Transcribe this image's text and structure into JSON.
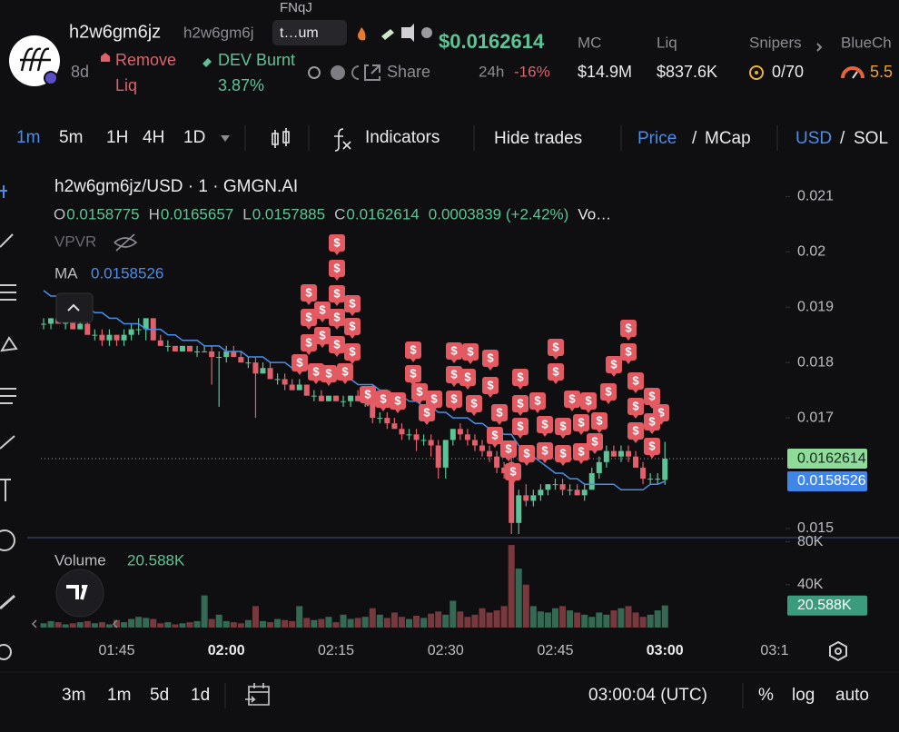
{
  "header": {
    "token_name": "h2w6gm6jz",
    "token_short": "h2w6gm6j",
    "tag_top": "FNqJ",
    "tag_box": "t…um",
    "age": "8d",
    "remove_liq_lines": [
      "Remove",
      "Liq"
    ],
    "dev_label": "DEV Burnt",
    "dev_value": "3.87%",
    "price": "$0.0162614",
    "change_label": "24h",
    "change": "-16%",
    "share": "Share",
    "stats": [
      {
        "label": "MC",
        "value": "$14.9M"
      },
      {
        "label": "Liq",
        "value": "$837.6K"
      },
      {
        "label": "Snipers",
        "value": "0/70"
      },
      {
        "label": "BlueCh",
        "value": "5.5"
      }
    ]
  },
  "toolbar": {
    "intervals": [
      "1m",
      "5m",
      "1H",
      "4H",
      "1D"
    ],
    "indicators": "Indicators",
    "hide_trades": "Hide trades",
    "price": "Price",
    "mcap": "MCap",
    "usd": "USD",
    "sol": "SOL",
    "sep": "/"
  },
  "chart_data": {
    "type": "candlestick",
    "title": "h2w6gm6jz/USD · 1 · GMGN.AI",
    "ohlc_letters": [
      "O",
      "H",
      "L",
      "C"
    ],
    "change": "0.0003839 (+2.42%)",
    "volume_short": "Vo…",
    "vpvr": "VPVR",
    "ma_name": "MA",
    "trade_marker": "$",
    "colors": {
      "up": "#5cc497",
      "down": "#e0616c",
      "ma": "#4a8ee8"
    },
    "categories": [
      null,
      null,
      null,
      null,
      null,
      null,
      null,
      null,
      null,
      null,
      "01:45",
      null,
      null,
      null,
      null,
      null,
      null,
      null,
      null,
      null,
      null,
      null,
      null,
      null,
      null,
      "02:00",
      null,
      null,
      null,
      null,
      null,
      null,
      null,
      null,
      null,
      null,
      null,
      null,
      null,
      null,
      "02:15",
      null,
      null,
      null,
      null,
      null,
      null,
      null,
      null,
      null,
      null,
      null,
      null,
      null,
      null,
      "02:30",
      null,
      null,
      null,
      null,
      null,
      null,
      null,
      null,
      null,
      null,
      null,
      null,
      null,
      null,
      "02:45",
      null,
      null,
      null,
      null,
      null,
      null,
      null,
      null,
      null,
      null,
      null,
      null,
      null,
      null,
      "03:00"
    ],
    "next_tick_label": "03:1",
    "candles": [
      [
        0.0187,
        0.0188,
        0.0186,
        0.0187
      ],
      [
        0.0187,
        0.0188,
        0.0186,
        0.0188
      ],
      [
        0.0188,
        0.0188,
        0.0187,
        0.0187
      ],
      [
        0.0187,
        0.0188,
        0.0186,
        0.0188
      ],
      [
        0.0188,
        0.0188,
        0.0186,
        0.0186
      ],
      [
        0.0186,
        0.0188,
        0.0186,
        0.0187
      ],
      [
        0.0187,
        0.0188,
        0.0185,
        0.0185
      ],
      [
        0.0185,
        0.0186,
        0.0184,
        0.0185
      ],
      [
        0.0185,
        0.0186,
        0.0183,
        0.0184
      ],
      [
        0.0184,
        0.0186,
        0.0183,
        0.0185
      ],
      [
        0.0185,
        0.0185,
        0.0183,
        0.0184
      ],
      [
        0.0184,
        0.0186,
        0.0183,
        0.0185
      ],
      [
        0.0185,
        0.0187,
        0.0184,
        0.0186
      ],
      [
        0.0186,
        0.0188,
        0.0185,
        0.0186
      ],
      [
        0.0186,
        0.0188,
        0.0184,
        0.0188
      ],
      [
        0.0188,
        0.0188,
        0.0184,
        0.0184
      ],
      [
        0.0184,
        0.0185,
        0.0183,
        0.0183
      ],
      [
        0.0183,
        0.0184,
        0.0182,
        0.0183
      ],
      [
        0.0183,
        0.0183,
        0.0182,
        0.0182
      ],
      [
        0.0182,
        0.0183,
        0.0182,
        0.0183
      ],
      [
        0.0183,
        0.0183,
        0.0182,
        0.0182
      ],
      [
        0.0182,
        0.0183,
        0.0181,
        0.0182
      ],
      [
        0.0182,
        0.0183,
        0.0182,
        0.0182
      ],
      [
        0.0182,
        0.0183,
        0.0176,
        0.0181
      ],
      [
        0.0181,
        0.0182,
        0.0172,
        0.0181
      ],
      [
        0.0181,
        0.0183,
        0.018,
        0.0182
      ],
      [
        0.0182,
        0.0183,
        0.0181,
        0.0181
      ],
      [
        0.0181,
        0.0182,
        0.018,
        0.018
      ],
      [
        0.018,
        0.0181,
        0.0179,
        0.018
      ],
      [
        0.018,
        0.0181,
        0.017,
        0.0178
      ],
      [
        0.0178,
        0.018,
        0.0178,
        0.0179
      ],
      [
        0.0179,
        0.018,
        0.0177,
        0.0177
      ],
      [
        0.0177,
        0.0178,
        0.0176,
        0.0177
      ],
      [
        0.0177,
        0.0178,
        0.0175,
        0.0176
      ],
      [
        0.0176,
        0.0177,
        0.0175,
        0.0175
      ],
      [
        0.0175,
        0.0177,
        0.0175,
        0.0176
      ],
      [
        0.0176,
        0.0176,
        0.0174,
        0.0174
      ],
      [
        0.0174,
        0.0175,
        0.0173,
        0.0174
      ],
      [
        0.0174,
        0.0175,
        0.0173,
        0.0173
      ],
      [
        0.0173,
        0.0174,
        0.0173,
        0.0174
      ],
      [
        0.0174,
        0.0174,
        0.0173,
        0.0173
      ],
      [
        0.0173,
        0.0174,
        0.0172,
        0.0173
      ],
      [
        0.0173,
        0.0174,
        0.0172,
        0.0174
      ],
      [
        0.0174,
        0.0175,
        0.0173,
        0.0173
      ],
      [
        0.0173,
        0.0175,
        0.0172,
        0.0175
      ],
      [
        0.0175,
        0.0176,
        0.0169,
        0.017
      ],
      [
        0.017,
        0.0171,
        0.0169,
        0.017
      ],
      [
        0.017,
        0.0171,
        0.0168,
        0.0169
      ],
      [
        0.0169,
        0.017,
        0.0168,
        0.0168
      ],
      [
        0.0168,
        0.0169,
        0.0166,
        0.0167
      ],
      [
        0.0167,
        0.0168,
        0.0166,
        0.0167
      ],
      [
        0.0167,
        0.0168,
        0.0164,
        0.0166
      ],
      [
        0.0166,
        0.0167,
        0.0165,
        0.0166
      ],
      [
        0.0166,
        0.0167,
        0.0163,
        0.0165
      ],
      [
        0.0165,
        0.0166,
        0.0159,
        0.0161
      ],
      [
        0.0161,
        0.0166,
        0.0159,
        0.0166
      ],
      [
        0.0166,
        0.0168,
        0.0165,
        0.0168
      ],
      [
        0.0168,
        0.0169,
        0.0166,
        0.0167
      ],
      [
        0.0167,
        0.0168,
        0.0165,
        0.0166
      ],
      [
        0.0166,
        0.0167,
        0.0164,
        0.0165
      ],
      [
        0.0165,
        0.0166,
        0.0163,
        0.0164
      ],
      [
        0.0164,
        0.0165,
        0.0162,
        0.0163
      ],
      [
        0.0163,
        0.0164,
        0.016,
        0.0161
      ],
      [
        0.0161,
        0.0162,
        0.0159,
        0.016
      ],
      [
        0.0162,
        0.0163,
        0.0149,
        0.0151
      ],
      [
        0.0151,
        0.0157,
        0.0149,
        0.0156
      ],
      [
        0.0156,
        0.0158,
        0.0154,
        0.0155
      ],
      [
        0.0155,
        0.0157,
        0.0154,
        0.0156
      ],
      [
        0.0156,
        0.0158,
        0.0155,
        0.0157
      ],
      [
        0.0157,
        0.0158,
        0.0156,
        0.0158
      ],
      [
        0.0158,
        0.0159,
        0.0157,
        0.0158
      ],
      [
        0.0158,
        0.0159,
        0.0156,
        0.0157
      ],
      [
        0.0157,
        0.0158,
        0.0156,
        0.0157
      ],
      [
        0.0157,
        0.0158,
        0.0156,
        0.0156
      ],
      [
        0.0156,
        0.0158,
        0.0155,
        0.0157
      ],
      [
        0.0157,
        0.0161,
        0.0157,
        0.016
      ],
      [
        0.016,
        0.0163,
        0.0159,
        0.0162
      ],
      [
        0.0162,
        0.0165,
        0.0161,
        0.0164
      ],
      [
        0.0164,
        0.0165,
        0.0163,
        0.0163
      ],
      [
        0.0163,
        0.0165,
        0.0162,
        0.0164
      ],
      [
        0.0164,
        0.0165,
        0.0162,
        0.0163
      ],
      [
        0.0163,
        0.0164,
        0.0161,
        0.0161
      ],
      [
        0.0161,
        0.0162,
        0.0158,
        0.0159
      ],
      [
        0.0159,
        0.016,
        0.0158,
        0.0159
      ],
      [
        0.0159,
        0.016,
        0.0158,
        0.0159
      ],
      [
        0.0158775,
        0.0165657,
        0.0157885,
        0.0162614
      ]
    ],
    "ma": [
      0.0193,
      0.0192,
      0.0192,
      0.0191,
      0.0191,
      0.019,
      0.019,
      0.0189,
      0.0189,
      0.0188,
      0.0188,
      0.0187,
      0.0187,
      0.0187,
      0.0186,
      0.0186,
      0.0186,
      0.0185,
      0.0185,
      0.0184,
      0.0184,
      0.0184,
      0.0183,
      0.0183,
      0.0183,
      0.0182,
      0.0182,
      0.0182,
      0.0181,
      0.0181,
      0.0181,
      0.018,
      0.018,
      0.018,
      0.0179,
      0.0179,
      0.0179,
      0.0178,
      0.0178,
      0.0178,
      0.0177,
      0.0177,
      0.0177,
      0.0176,
      0.0176,
      0.0176,
      0.0175,
      0.0175,
      0.0174,
      0.0174,
      0.0173,
      0.0173,
      0.0172,
      0.0172,
      0.0171,
      0.0171,
      0.017,
      0.017,
      0.017,
      0.0169,
      0.0169,
      0.0168,
      0.0168,
      0.0167,
      0.0167,
      0.0165,
      0.0164,
      0.0163,
      0.0162,
      0.0161,
      0.016,
      0.016,
      0.0159,
      0.0159,
      0.0158,
      0.0158,
      0.0158,
      0.0158,
      0.0158,
      0.0157,
      0.0157,
      0.0157,
      0.0157,
      0.0158,
      0.0158,
      0.0158526
    ],
    "ylim": [
      0.0149,
      0.0214
    ],
    "yticks": [
      0.015,
      0.017,
      0.018,
      0.019,
      0.02,
      0.021
    ],
    "volume": {
      "name": "Volume",
      "last_value_label": "20.588K",
      "ylim": [
        0,
        83
      ],
      "yticks": [
        {
          "value": 40,
          "label": "40K"
        },
        {
          "value": 80,
          "label": "80K"
        }
      ],
      "values": [
        4,
        6,
        5,
        3,
        4,
        5,
        6,
        4,
        5,
        3,
        7,
        5,
        8,
        10,
        9,
        8,
        4,
        5,
        3,
        4,
        5,
        6,
        30,
        8,
        12,
        6,
        5,
        4,
        7,
        20,
        6,
        5,
        8,
        7,
        6,
        20,
        9,
        7,
        8,
        10,
        5,
        12,
        8,
        9,
        10,
        18,
        12,
        9,
        14,
        10,
        8,
        11,
        9,
        13,
        15,
        12,
        25,
        15,
        10,
        12,
        18,
        14,
        16,
        20,
        77,
        55,
        40,
        20,
        15,
        14,
        18,
        20,
        16,
        14,
        12,
        10,
        14,
        12,
        16,
        18,
        20,
        14,
        10,
        12,
        16,
        20.588
      ]
    }
  },
  "footer": {
    "ranges": [
      "3m",
      "1m",
      "5d",
      "1d"
    ],
    "clock": "03:00:04 (UTC)",
    "percent": "%",
    "log": "log",
    "auto": "auto"
  }
}
